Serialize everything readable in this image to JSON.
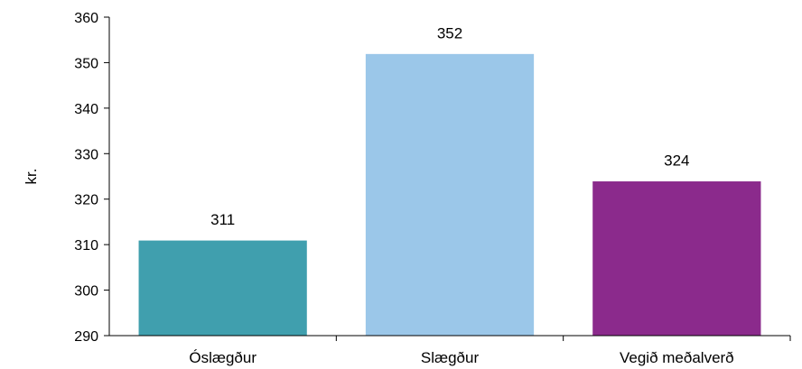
{
  "chart_data": {
    "type": "bar",
    "categories": [
      "Óslægður",
      "Slægður",
      "Vegið meðalverð"
    ],
    "values": [
      311,
      352,
      324
    ],
    "data_labels": [
      "311",
      "352",
      "324"
    ],
    "colors": [
      "#409FAE",
      "#9BC7E9",
      "#8B2A8C"
    ],
    "title": "",
    "xlabel": "",
    "ylabel": "kr.",
    "ylim": [
      290,
      360
    ],
    "yticks": [
      290,
      300,
      310,
      320,
      330,
      340,
      350,
      360
    ],
    "grid": false,
    "legend": "none"
  }
}
